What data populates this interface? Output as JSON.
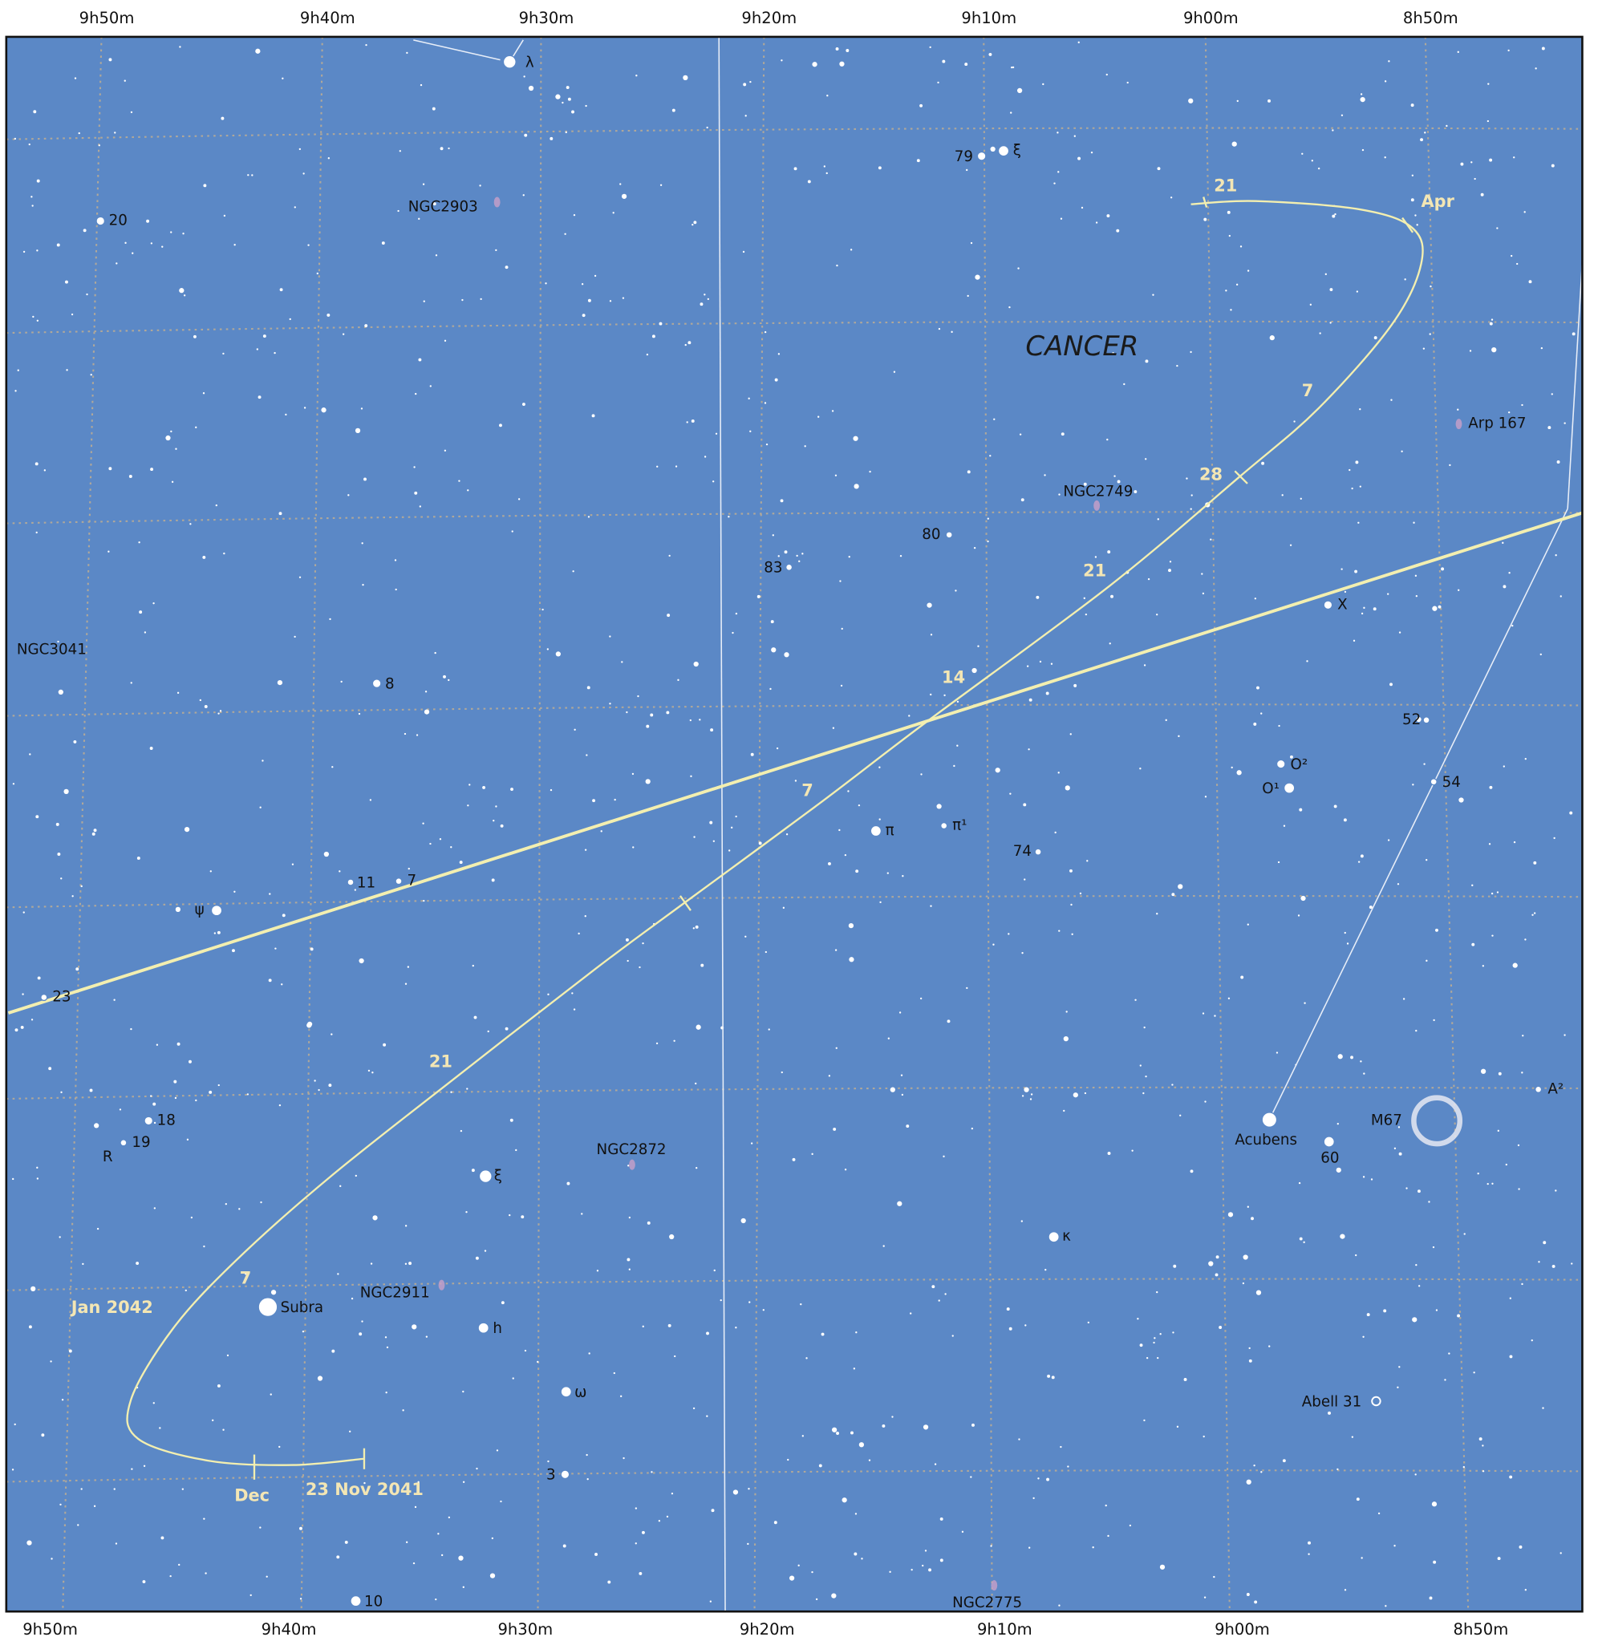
{
  "ra_labels_top": [
    "9h50m",
    "9h40m",
    "9h30m",
    "9h20m",
    "9h10m",
    "9h00m",
    "8h50m"
  ],
  "ra_labels_bottom": [
    "9h50m",
    "9h40m",
    "9h30m",
    "9h20m",
    "9h10m",
    "9h00m",
    "8h50m"
  ],
  "constellation": "CANCER",
  "objects": [
    "λ",
    "79",
    "ξ",
    "NGC2903",
    "20",
    "Arp 167",
    "NGC2749",
    "80",
    "83",
    "NGC3041",
    "8",
    "X",
    "52",
    "O²",
    "O¹",
    "54",
    "π",
    "π¹",
    "74",
    "11",
    "7",
    "ψ",
    "23",
    "18",
    "19",
    "R",
    "A²",
    "M67",
    "Acubens",
    "60",
    "NGC2872",
    "ξ",
    "κ",
    "Subra",
    "NGC2911",
    "h",
    "ω",
    "Abell 31",
    "3",
    "10",
    "NGC2775"
  ],
  "path_labels": [
    "21",
    "Apr",
    "7",
    "28",
    "21",
    "14",
    "7",
    "21",
    "7",
    "Jan 2042",
    "Dec",
    "23 Nov 2041"
  ]
}
